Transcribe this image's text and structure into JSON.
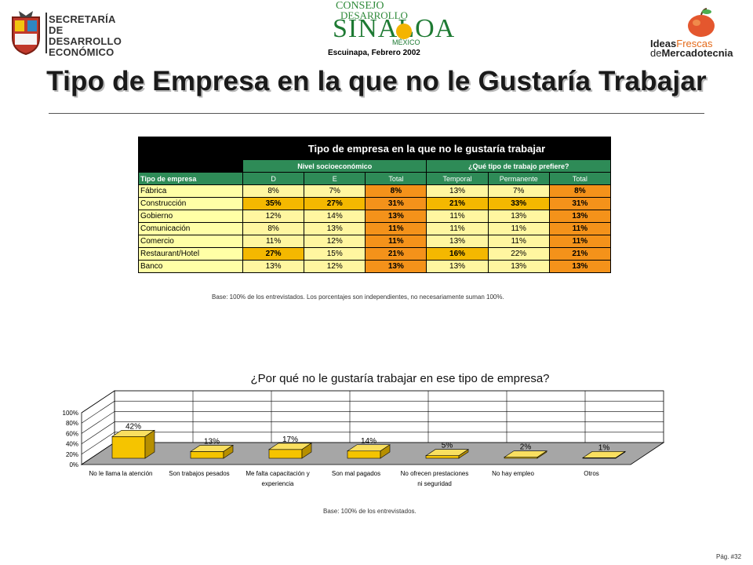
{
  "header": {
    "left_logo_lines": [
      "SECRETARÍA",
      "DE DESARROLLO",
      "ECONÓMICO"
    ],
    "center_logo": {
      "consejo": "CONSEJO",
      "desarrollo": "DESARROLLO",
      "sinaloa": "SINALOA",
      "mexico": "MÉXICO"
    },
    "caption": "Escuinapa, Febrero 2002",
    "right_logo": {
      "ideas": "Ideas",
      "frescas": "Frescas",
      "de": "de",
      "mercadotecnia": "Mercadotecnia"
    }
  },
  "page_title": "Tipo de Empresa en la que no le Gustaría Trabajar",
  "table": {
    "title": "Tipo de empresa en la que no le gustaría trabajar",
    "group1": "Nivel socioeconómico",
    "group2": "¿Qué tipo de trabajo prefiere?",
    "row_header": "Tipo de empresa",
    "columns": [
      "D",
      "E",
      "Total",
      "Temporal",
      "Permanente",
      "Total"
    ],
    "rows": [
      {
        "name": "Fábrica",
        "values": [
          "8%",
          "7%",
          "8%",
          "13%",
          "7%",
          "8%"
        ]
      },
      {
        "name": "Construcción",
        "values": [
          "35%",
          "27%",
          "31%",
          "21%",
          "33%",
          "31%"
        ]
      },
      {
        "name": "Gobierno",
        "values": [
          "12%",
          "14%",
          "13%",
          "11%",
          "13%",
          "13%"
        ]
      },
      {
        "name": "Comunicación",
        "values": [
          "8%",
          "13%",
          "11%",
          "11%",
          "11%",
          "11%"
        ]
      },
      {
        "name": "Comercio",
        "values": [
          "11%",
          "12%",
          "11%",
          "13%",
          "11%",
          "11%"
        ]
      },
      {
        "name": "Restaurant/Hotel",
        "values": [
          "27%",
          "15%",
          "21%",
          "16%",
          "22%",
          "21%"
        ]
      },
      {
        "name": "Banco",
        "values": [
          "13%",
          "12%",
          "13%",
          "13%",
          "13%",
          "13%"
        ]
      }
    ],
    "base_note": "Base:  100% de los entrevistados. Los porcentajes son independientes, no necesariamente suman 100%."
  },
  "chart_data": {
    "type": "bar",
    "title": "¿Por qué no le gustaría trabajar en ese tipo de empresa?",
    "categories": [
      "No le llama la atención",
      "Son trabajos pesados",
      "Me falta capacitación y experiencia",
      "Son mal pagados",
      "No ofrecen prestaciones ni seguridad",
      "No hay empleo",
      "Otros"
    ],
    "category_lines": [
      [
        "No le llama la atención"
      ],
      [
        "Son trabajos pesados"
      ],
      [
        "Me falta capacitación y",
        "experiencia"
      ],
      [
        "Son mal pagados"
      ],
      [
        "No ofrecen prestaciones",
        "ni seguridad"
      ],
      [
        "No hay empleo"
      ],
      [
        "Otros"
      ]
    ],
    "values": [
      42,
      13,
      17,
      14,
      5,
      2,
      1
    ],
    "data_labels": [
      "42%",
      "13%",
      "17%",
      "14%",
      "5%",
      "2%",
      "1%"
    ],
    "ylim": [
      0,
      100
    ],
    "yticks": [
      "0%",
      "20%",
      "40%",
      "60%",
      "80%",
      "100%"
    ],
    "bar_color": "#f5c400",
    "floor_color": "#a6a6a6"
  },
  "chart_base_note": "Base:  100% de los entrevistados.",
  "page_number": "Pág. #32"
}
